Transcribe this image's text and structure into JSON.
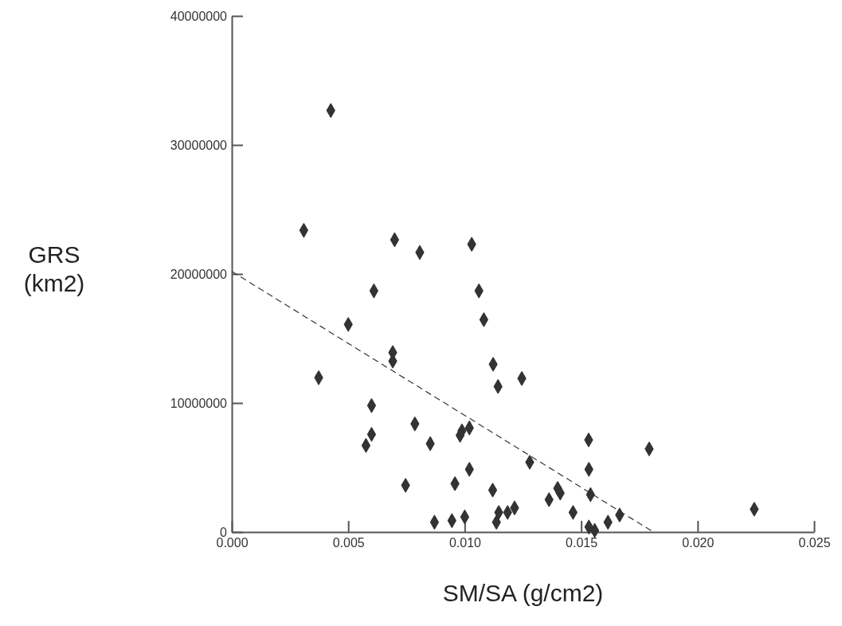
{
  "chart_data": {
    "type": "scatter",
    "xlabel": "SM/SA (g/cm2)",
    "ylabel": "GRS (km2)",
    "marker": "diamond",
    "grid": false,
    "xlim": [
      0,
      0.025
    ],
    "ylim": [
      0,
      40000000
    ],
    "xticks": [
      {
        "value": 0,
        "label": "0.000"
      },
      {
        "value": 0.005,
        "label": "0.005"
      },
      {
        "value": 0.01,
        "label": "0.010"
      },
      {
        "value": 0.015,
        "label": "0.015"
      },
      {
        "value": 0.02,
        "label": "0.020"
      },
      {
        "value": 0.025,
        "label": "0.025"
      }
    ],
    "yticks": [
      0,
      10000000,
      20000000,
      30000000,
      40000000
    ],
    "series": [
      {
        "color": "#333333",
        "x": [
          0.00425,
          0.00309,
          0.00699,
          0.00807,
          0.0061,
          0.0103,
          0.005,
          0.00691,
          0.00691,
          0.00373,
          0.006,
          0.00786,
          0.006,
          0.00576,
          0.00852,
          0.00746,
          0.0087,
          0.01061,
          0.01082,
          0.01122,
          0.01143,
          0.01245,
          0.0098,
          0.00988,
          0.0102,
          0.01279,
          0.0102,
          0.00958,
          0.0112,
          0.01532,
          0.01792,
          0.01533,
          0.01399,
          0.0141,
          0.01362,
          0.0154,
          0.01465,
          0.01665,
          0.01615,
          0.01533,
          0.01558,
          0.00945,
          0.01,
          0.01136,
          0.01146,
          0.01184,
          0.01214,
          0.02243
        ],
        "values": [
          32670000,
          23380000,
          22650000,
          21670000,
          18690000,
          22300000,
          16090000,
          13910000,
          13250000,
          11960000,
          9800000,
          8380000,
          7570000,
          6710000,
          6850000,
          3620000,
          760000,
          18690000,
          16460000,
          13000000,
          11280000,
          11900000,
          7490000,
          7840000,
          8070000,
          5410000,
          4860000,
          3750000,
          3250000,
          7140000,
          6440000,
          4860000,
          3380000,
          3020000,
          2510000,
          2900000,
          1520000,
          1320000,
          760000,
          390000,
          120000,
          880000,
          1170000,
          760000,
          1520000,
          1520000,
          1870000,
          1770000
        ]
      },
      {
        "type": "line",
        "color": "#333333",
        "line_style": "dashed",
        "marker": "none",
        "x": [
          0,
          0.0181
        ],
        "values": [
          20200000,
          0
        ]
      }
    ]
  }
}
